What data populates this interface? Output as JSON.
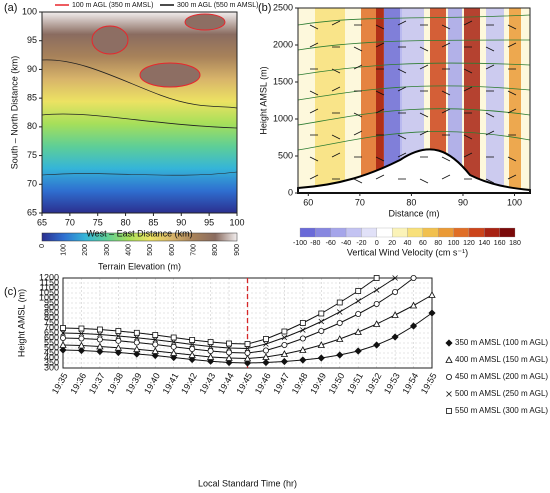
{
  "chart_data": [
    {
      "type": "contour",
      "panel_label": "(a)",
      "xlabel": "West – East Distance (km)",
      "ylabel": "South – North Distance (km)",
      "xlim": [
        65,
        100
      ],
      "xticks": [
        65,
        70,
        75,
        80,
        85,
        90,
        95,
        100
      ],
      "ylim": [
        65,
        100
      ],
      "yticks": [
        65,
        70,
        75,
        80,
        85,
        90,
        95,
        100
      ],
      "legend": [
        {
          "name": "100 m AGL (350 m AMSL)",
          "color": "#e8262c"
        },
        {
          "name": "300 m AGL (550 m AMSL)",
          "color": "#111111"
        }
      ],
      "colorbar": {
        "label": "Terrain Elevation (m)",
        "ticks": [
          0,
          100,
          200,
          300,
          400,
          500,
          600,
          700,
          800,
          900
        ],
        "colors": [
          "#2b2f8f",
          "#2f6fd0",
          "#35b5d8",
          "#5fcf96",
          "#a6df5a",
          "#ece263",
          "#d8b46a",
          "#a8825a",
          "#8a6c60",
          "#f2eeee"
        ]
      }
    },
    {
      "type": "vector_field",
      "panel_label": "(b)",
      "xlabel": "Distance (m)",
      "ylabel": "Height AMSL (m)",
      "xlim": [
        58,
        103
      ],
      "xticks": [
        60,
        70,
        80,
        90,
        100
      ],
      "ylim": [
        0,
        2500
      ],
      "yticks": [
        0,
        500,
        1000,
        1500,
        2000,
        2500
      ],
      "colorbar": {
        "label": "Vertical Wind Velocity (cm s⁻¹)",
        "ticks": [
          -100,
          -80,
          -60,
          -40,
          -20,
          0,
          20,
          40,
          60,
          80,
          100,
          120,
          140,
          160,
          180
        ],
        "colors": [
          "#6a6ad8",
          "#8787e0",
          "#a5a5ea",
          "#c3c3f2",
          "#e1e1f8",
          "#ffffff",
          "#fbf3b8",
          "#f8e07a",
          "#f1c04e",
          "#ea9a36",
          "#e06e26",
          "#cc441a",
          "#a82212",
          "#7a0a0a"
        ]
      }
    },
    {
      "type": "line",
      "panel_label": "(c)",
      "xlabel": "Local Standard Time (hr)",
      "ylabel": "Height AMSL (m)",
      "categories": [
        "19:35",
        "19:36",
        "19:37",
        "19:38",
        "19:39",
        "19:40",
        "19:41",
        "19:42",
        "19:43",
        "19:44",
        "19:45",
        "19:46",
        "19:47",
        "19:48",
        "19:49",
        "19:50",
        "19:51",
        "19:52",
        "19:53",
        "19:54",
        "19:55"
      ],
      "ylim": [
        300,
        1200
      ],
      "yticks": [
        300,
        350,
        400,
        450,
        500,
        550,
        600,
        650,
        700,
        750,
        800,
        850,
        900,
        950,
        1000,
        1050,
        1100,
        1150,
        1200
      ],
      "grid": true,
      "vline": "19:45",
      "vline_color": "#d62728",
      "series": [
        {
          "name": "350 m AMSL (100 m AGL)",
          "color": "#111111",
          "marker": "diamond",
          "values": [
            480,
            475,
            465,
            455,
            440,
            425,
            405,
            385,
            368,
            355,
            350,
            355,
            365,
            380,
            400,
            430,
            470,
            530,
            610,
            720,
            850
          ]
        },
        {
          "name": "400 m AMSL (150 m AGL)",
          "color": "#111111",
          "marker": "triangle",
          "values": [
            530,
            525,
            515,
            502,
            488,
            470,
            450,
            430,
            410,
            400,
            395,
            410,
            440,
            480,
            530,
            590,
            660,
            740,
            830,
            925,
            1030
          ]
        },
        {
          "name": "450 m AMSL (200 m AGL)",
          "color": "#111111",
          "marker": "circle",
          "values": [
            600,
            595,
            585,
            572,
            555,
            535,
            512,
            490,
            470,
            455,
            450,
            475,
            530,
            595,
            670,
            750,
            840,
            940,
            1060,
            1200,
            null
          ]
        },
        {
          "name": "500 m AMSL (250 m AGL)",
          "color": "#111111",
          "marker": "cross",
          "values": [
            650,
            645,
            635,
            620,
            603,
            583,
            560,
            535,
            515,
            500,
            495,
            540,
            605,
            680,
            765,
            860,
            970,
            1080,
            1200,
            null,
            null
          ]
        },
        {
          "name": "550 m AMSL (300 m AGL)",
          "color": "#111111",
          "marker": "square",
          "values": [
            700,
            695,
            685,
            670,
            652,
            630,
            605,
            580,
            560,
            545,
            540,
            590,
            665,
            750,
            845,
            955,
            1070,
            1200,
            null,
            null,
            null
          ]
        }
      ]
    }
  ]
}
